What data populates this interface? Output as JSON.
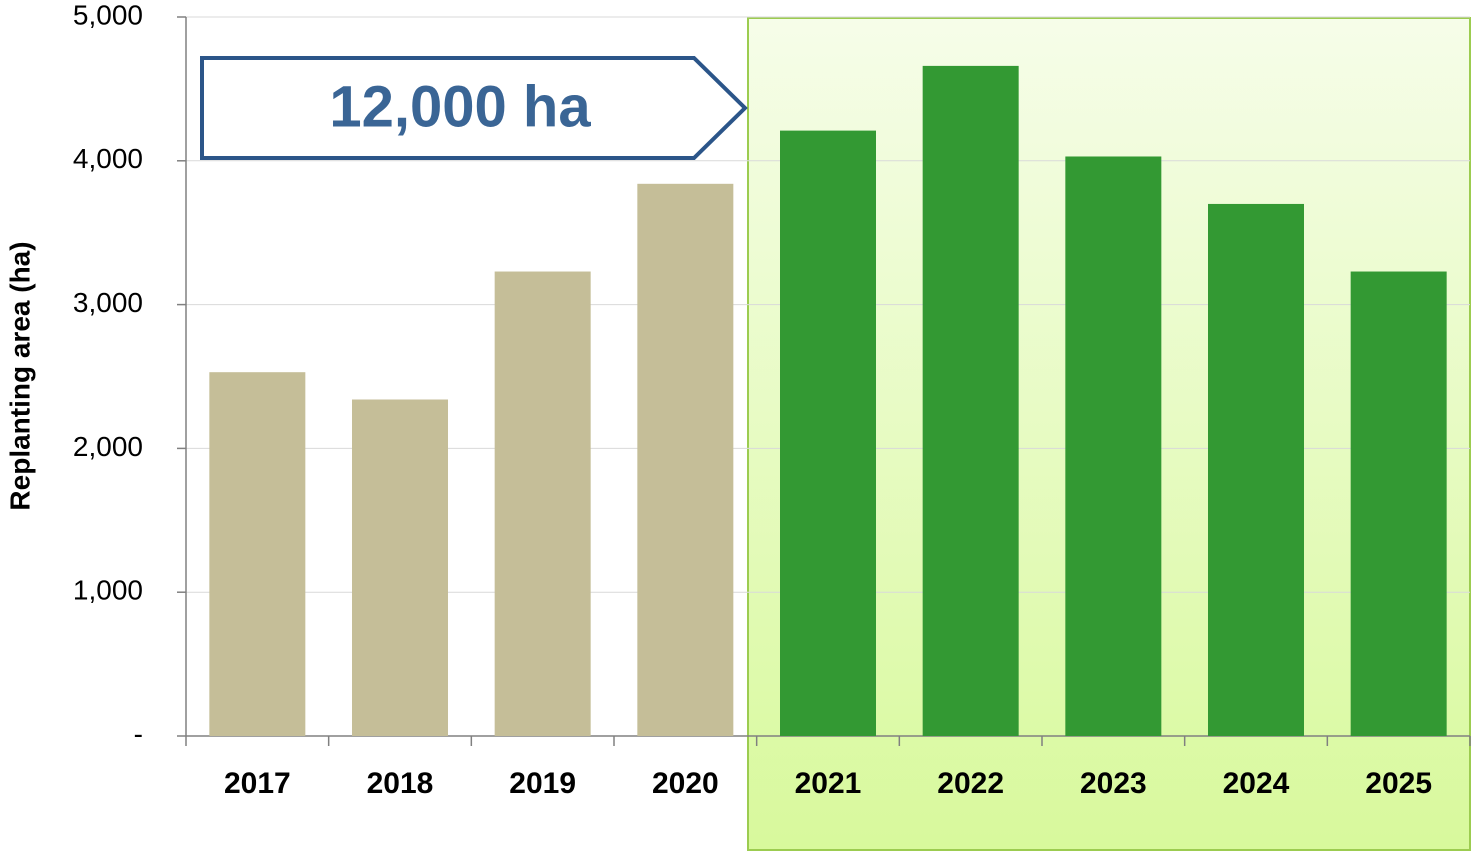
{
  "chart_data": {
    "type": "bar",
    "y_label": "Replanting area (ha)",
    "annotation": "12,000 ha",
    "categories": [
      "2017",
      "2018",
      "2019",
      "2020",
      "2021",
      "2022",
      "2023",
      "2024",
      "2025"
    ],
    "values": [
      2530,
      2340,
      3230,
      3840,
      4210,
      4660,
      4030,
      3700,
      3230
    ],
    "colors": [
      "#c5be98",
      "#c5be98",
      "#c5be98",
      "#c5be98",
      "#339933",
      "#339933",
      "#339933",
      "#339933",
      "#339933"
    ],
    "ylim": [
      0,
      5000
    ],
    "yticks": [
      {
        "value": 0,
        "label": "-"
      },
      {
        "value": 1000,
        "label": "1,000"
      },
      {
        "value": 2000,
        "label": "2,000"
      },
      {
        "value": 3000,
        "label": "3,000"
      },
      {
        "value": 4000,
        "label": "4,000"
      },
      {
        "value": 5000,
        "label": "5,000"
      }
    ],
    "grid": true
  }
}
